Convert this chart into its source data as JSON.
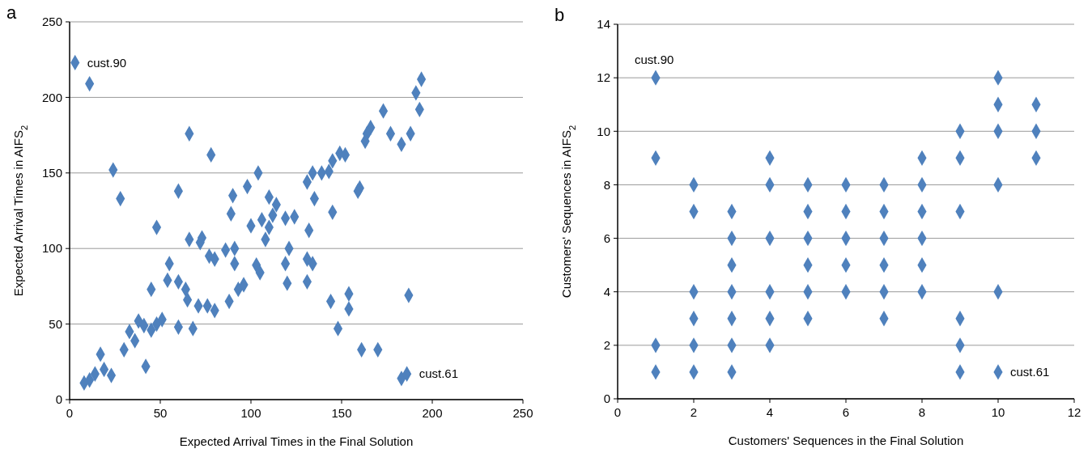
{
  "chart_data": [
    {
      "type": "scatter",
      "title": "a",
      "xlabel": "Expected Arrival Times in the Final Solution",
      "ylabel": "Expected Arrival Times in AIFS$_{2}$",
      "marker": "diamond",
      "grid": "y",
      "xlim": [
        0,
        250
      ],
      "ylim": [
        0,
        250
      ],
      "xticks": [
        0,
        50,
        100,
        150,
        200,
        250
      ],
      "yticks": [
        0,
        50,
        100,
        150,
        200,
        250
      ],
      "annotations": [
        {
          "text": "cust.90",
          "x": 3,
          "y": 223
        },
        {
          "text": "cust.61",
          "x": 186,
          "y": 17
        }
      ],
      "series": [
        {
          "color": "#4f81bd",
          "x": [
            3,
            11,
            24,
            28,
            66,
            78,
            104,
            98,
            60,
            90,
            110,
            114,
            89,
            112,
            106,
            119,
            124,
            100,
            110,
            108,
            48,
            66,
            73,
            72,
            86,
            91,
            77,
            80,
            121,
            55,
            91,
            103,
            105,
            119,
            120,
            54,
            60,
            64,
            45,
            65,
            71,
            76,
            80,
            88,
            93,
            96,
            60,
            68,
            38,
            41,
            45,
            48,
            51,
            33,
            36,
            30,
            17,
            19,
            23,
            14,
            11,
            8,
            42,
            194,
            191,
            193,
            173,
            166,
            164,
            163,
            177,
            188,
            183,
            149,
            152,
            145,
            143,
            139,
            134,
            131,
            135,
            160,
            159,
            145,
            132,
            131,
            134,
            131,
            154,
            144,
            154,
            187,
            148,
            161,
            170,
            183,
            186
          ],
          "values": [
            223,
            209,
            152,
            133,
            176,
            162,
            150,
            141,
            138,
            135,
            134,
            129,
            123,
            122,
            119,
            120,
            121,
            115,
            114,
            106,
            114,
            106,
            107,
            104,
            99,
            100,
            95,
            93,
            100,
            90,
            90,
            89,
            84,
            90,
            77,
            79,
            78,
            73,
            73,
            66,
            62,
            62,
            59,
            65,
            73,
            76,
            48,
            47,
            52,
            49,
            46,
            50,
            53,
            45,
            39,
            33,
            30,
            20,
            16,
            17,
            13,
            11,
            22,
            212,
            203,
            192,
            191,
            180,
            176,
            171,
            176,
            176,
            169,
            163,
            162,
            158,
            151,
            150,
            150,
            144,
            133,
            140,
            138,
            124,
            112,
            93,
            90,
            78,
            70,
            65,
            60,
            69,
            47,
            33,
            33,
            14,
            17
          ]
        }
      ]
    },
    {
      "type": "scatter",
      "title": "b",
      "xlabel": "Customers' Sequences in the Final Solution",
      "ylabel": "Customers' Sequences in AIFS$_{2}$",
      "marker": "diamond",
      "grid": "y",
      "xlim": [
        0,
        12
      ],
      "ylim": [
        0,
        14
      ],
      "xticks": [
        0,
        2,
        4,
        6,
        8,
        10,
        12
      ],
      "yticks": [
        0,
        2,
        4,
        6,
        8,
        10,
        12,
        14
      ],
      "annotations": [
        {
          "text": "cust.90",
          "x": 1,
          "y": 12
        },
        {
          "text": "cust.61",
          "x": 10,
          "y": 1
        }
      ],
      "series": [
        {
          "color": "#4f81bd",
          "x": [
            1,
            1,
            1,
            1,
            2,
            2,
            2,
            2,
            2,
            2,
            3,
            3,
            3,
            3,
            3,
            3,
            3,
            4,
            4,
            4,
            4,
            4,
            4,
            5,
            5,
            5,
            5,
            5,
            5,
            6,
            6,
            6,
            6,
            6,
            7,
            7,
            7,
            7,
            7,
            7,
            8,
            8,
            8,
            8,
            8,
            8,
            9,
            9,
            9,
            9,
            9,
            9,
            10,
            10,
            10,
            10,
            10,
            10,
            11,
            11,
            11
          ],
          "values": [
            12,
            9,
            2,
            1,
            8,
            7,
            4,
            3,
            2,
            1,
            7,
            6,
            5,
            4,
            3,
            2,
            1,
            9,
            8,
            6,
            4,
            3,
            2,
            8,
            7,
            6,
            5,
            4,
            3,
            8,
            7,
            6,
            5,
            4,
            8,
            7,
            6,
            5,
            4,
            3,
            9,
            8,
            7,
            6,
            5,
            4,
            10,
            9,
            7,
            3,
            2,
            1,
            12,
            11,
            10,
            8,
            4,
            1,
            11,
            10,
            9
          ]
        }
      ]
    }
  ]
}
